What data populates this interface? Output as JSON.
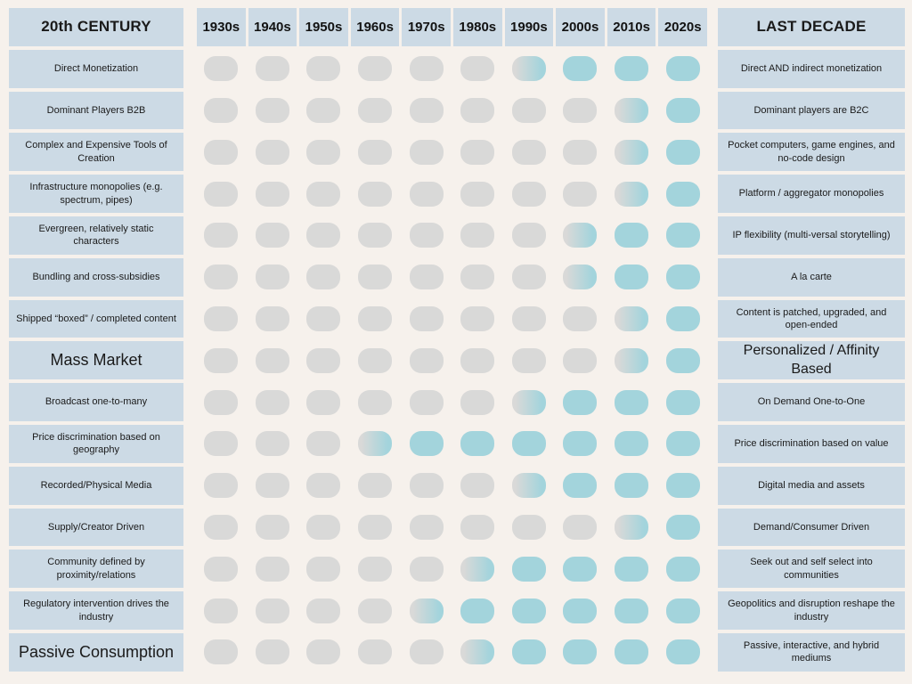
{
  "colors": {
    "background": "#f6f1ec",
    "label_box": "#ccdae5",
    "pill_gray": "#d9d9d8",
    "pill_teal": "#a3d4dc",
    "text": "#1a1a1a"
  },
  "header": {
    "left_title": "20th CENTURY",
    "right_title": "LAST DECADE"
  },
  "chart_data": {
    "type": "heatmap",
    "columns": [
      "1930s",
      "1940s",
      "1950s",
      "1960s",
      "1970s",
      "1980s",
      "1990s",
      "2000s",
      "2010s",
      "2020s"
    ],
    "cell_states_legend": [
      "gray",
      "fade",
      "teal"
    ],
    "rows": [
      {
        "left_label": "Direct Monetization",
        "right_label": "Direct AND indirect monetization",
        "transition_decade": "1990s",
        "left_emphasis": false,
        "right_emphasis": false,
        "states": [
          "gray",
          "gray",
          "gray",
          "gray",
          "gray",
          "gray",
          "fade",
          "teal",
          "teal",
          "teal"
        ]
      },
      {
        "left_label": "Dominant Players B2B",
        "right_label": "Dominant players are B2C",
        "transition_decade": "2010s",
        "left_emphasis": false,
        "right_emphasis": false,
        "states": [
          "gray",
          "gray",
          "gray",
          "gray",
          "gray",
          "gray",
          "gray",
          "gray",
          "fade",
          "teal"
        ]
      },
      {
        "left_label": "Complex and Expensive Tools of Creation",
        "right_label": "Pocket computers, game engines, and no-code design",
        "transition_decade": "2010s",
        "left_emphasis": false,
        "right_emphasis": false,
        "states": [
          "gray",
          "gray",
          "gray",
          "gray",
          "gray",
          "gray",
          "gray",
          "gray",
          "fade",
          "teal"
        ]
      },
      {
        "left_label": "Infrastructure monopolies (e.g. spectrum, pipes)",
        "right_label": "Platform / aggregator monopolies",
        "transition_decade": "2010s",
        "left_emphasis": false,
        "right_emphasis": false,
        "states": [
          "gray",
          "gray",
          "gray",
          "gray",
          "gray",
          "gray",
          "gray",
          "gray",
          "fade",
          "teal"
        ]
      },
      {
        "left_label": "Evergreen, relatively static characters",
        "right_label": "IP flexibility (multi-versal storytelling)",
        "transition_decade": "2000s",
        "left_emphasis": false,
        "right_emphasis": false,
        "states": [
          "gray",
          "gray",
          "gray",
          "gray",
          "gray",
          "gray",
          "gray",
          "fade",
          "teal",
          "teal"
        ]
      },
      {
        "left_label": "Bundling and cross-subsidies",
        "right_label": "A la carte",
        "transition_decade": "2000s",
        "left_emphasis": false,
        "right_emphasis": false,
        "states": [
          "gray",
          "gray",
          "gray",
          "gray",
          "gray",
          "gray",
          "gray",
          "fade",
          "teal",
          "teal"
        ]
      },
      {
        "left_label": "Shipped “boxed” / completed content",
        "right_label": "Content is patched, upgraded, and open-ended",
        "transition_decade": "2010s",
        "left_emphasis": false,
        "right_emphasis": false,
        "states": [
          "gray",
          "gray",
          "gray",
          "gray",
          "gray",
          "gray",
          "gray",
          "gray",
          "fade",
          "teal"
        ]
      },
      {
        "left_label": "Mass Market",
        "right_label": "Personalized / Affinity Based",
        "transition_decade": "2010s",
        "left_emphasis": true,
        "right_emphasis": true,
        "states": [
          "gray",
          "gray",
          "gray",
          "gray",
          "gray",
          "gray",
          "gray",
          "gray",
          "fade",
          "teal"
        ]
      },
      {
        "left_label": "Broadcast one-to-many",
        "right_label": "On Demand One-to-One",
        "transition_decade": "1990s",
        "left_emphasis": false,
        "right_emphasis": false,
        "states": [
          "gray",
          "gray",
          "gray",
          "gray",
          "gray",
          "gray",
          "fade",
          "teal",
          "teal",
          "teal"
        ]
      },
      {
        "left_label": "Price discrimination based on geography",
        "right_label": "Price discrimination based on value",
        "transition_decade": "1960s",
        "left_emphasis": false,
        "right_emphasis": false,
        "states": [
          "gray",
          "gray",
          "gray",
          "fade",
          "teal",
          "teal",
          "teal",
          "teal",
          "teal",
          "teal"
        ]
      },
      {
        "left_label": "Recorded/Physical Media",
        "right_label": "Digital media and assets",
        "transition_decade": "1990s",
        "left_emphasis": false,
        "right_emphasis": false,
        "states": [
          "gray",
          "gray",
          "gray",
          "gray",
          "gray",
          "gray",
          "fade",
          "teal",
          "teal",
          "teal"
        ]
      },
      {
        "left_label": "Supply/Creator Driven",
        "right_label": "Demand/Consumer Driven",
        "transition_decade": "2010s",
        "left_emphasis": false,
        "right_emphasis": false,
        "states": [
          "gray",
          "gray",
          "gray",
          "gray",
          "gray",
          "gray",
          "gray",
          "gray",
          "fade",
          "teal"
        ]
      },
      {
        "left_label": "Community defined by proximity/relations",
        "right_label": "Seek out and self select into communities",
        "transition_decade": "1980s",
        "left_emphasis": false,
        "right_emphasis": false,
        "states": [
          "gray",
          "gray",
          "gray",
          "gray",
          "gray",
          "fade",
          "teal",
          "teal",
          "teal",
          "teal"
        ]
      },
      {
        "left_label": "Regulatory intervention drives the industry",
        "right_label": "Geopolitics and disruption reshape the industry",
        "transition_decade": "1970s",
        "left_emphasis": false,
        "right_emphasis": false,
        "states": [
          "gray",
          "gray",
          "gray",
          "gray",
          "fade",
          "teal",
          "teal",
          "teal",
          "teal",
          "teal"
        ]
      },
      {
        "left_label": "Passive Consumption",
        "right_label": "Passive, interactive, and hybrid mediums",
        "transition_decade": "1980s",
        "left_emphasis": true,
        "right_emphasis": false,
        "states": [
          "gray",
          "gray",
          "gray",
          "gray",
          "gray",
          "fade",
          "teal",
          "teal",
          "teal",
          "teal"
        ]
      }
    ]
  }
}
